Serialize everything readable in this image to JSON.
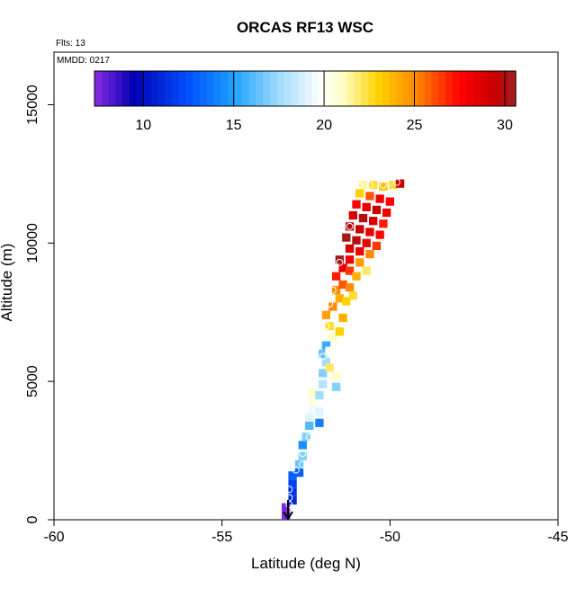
{
  "chart_data": {
    "type": "heatmap",
    "title": "ORCAS RF13 WSC",
    "annotations": [
      "Flts: 13",
      "MMDD: 0217"
    ],
    "xlabel": "Latitude (deg N)",
    "ylabel": "Altitude (m)",
    "xlim": [
      -60,
      -45
    ],
    "ylim": [
      0,
      16900
    ],
    "xticks": [
      -60,
      -55,
      -50,
      -45
    ],
    "xtick_labels": [
      "-60",
      "-55",
      "-50",
      "-45"
    ],
    "yticks": [
      0,
      5000,
      10000,
      15000
    ],
    "ytick_labels": [
      "0",
      "5000",
      "10000",
      "15000"
    ],
    "colorbar": {
      "range": [
        7.3,
        30.6
      ],
      "ticks": [
        10,
        15,
        20,
        25,
        30
      ],
      "tick_labels": [
        "10",
        "15",
        "20",
        "25",
        "30"
      ],
      "stops": [
        {
          "v": 7.3,
          "c": "#8a2be2"
        },
        {
          "v": 9.5,
          "c": "#0000b4"
        },
        {
          "v": 12.5,
          "c": "#0050ff"
        },
        {
          "v": 15.0,
          "c": "#1ea0ff"
        },
        {
          "v": 17.5,
          "c": "#a0dcff"
        },
        {
          "v": 19.8,
          "c": "#ffffff"
        },
        {
          "v": 21.0,
          "c": "#ffffc8"
        },
        {
          "v": 23.0,
          "c": "#ffd200"
        },
        {
          "v": 25.0,
          "c": "#ff8c00"
        },
        {
          "v": 27.5,
          "c": "#ff0000"
        },
        {
          "v": 29.5,
          "c": "#c80000"
        },
        {
          "v": 30.6,
          "c": "#a01e1e"
        }
      ]
    },
    "cell_size": {
      "dlat": 0.25,
      "dalt": 300
    },
    "cells": [
      [
        -53.1,
        150,
        7.5
      ],
      [
        -53.1,
        450,
        7.5
      ],
      [
        -52.9,
        700,
        11
      ],
      [
        -52.9,
        1000,
        11.5
      ],
      [
        -52.9,
        1300,
        12
      ],
      [
        -52.9,
        1600,
        13
      ],
      [
        -52.7,
        1700,
        13
      ],
      [
        -52.7,
        2000,
        16.5
      ],
      [
        -52.6,
        2300,
        17
      ],
      [
        -52.6,
        2700,
        14.5
      ],
      [
        -52.5,
        3000,
        17
      ],
      [
        -52.4,
        3400,
        16
      ],
      [
        -52.4,
        3700,
        19
      ],
      [
        -52.3,
        4000,
        19.5
      ],
      [
        -52.3,
        4300,
        20.5
      ],
      [
        -52.3,
        4600,
        21
      ],
      [
        -52.1,
        3500,
        14
      ],
      [
        -52.1,
        3900,
        19
      ],
      [
        -52.1,
        4500,
        17.5
      ],
      [
        -52.0,
        4900,
        18
      ],
      [
        -52.0,
        5300,
        17
      ],
      [
        -51.9,
        5700,
        17.5
      ],
      [
        -52.0,
        6000,
        16.5
      ],
      [
        -51.9,
        6300,
        15.5
      ],
      [
        -51.8,
        5500,
        22
      ],
      [
        -51.8,
        6100,
        20
      ],
      [
        -51.6,
        4800,
        17
      ],
      [
        -51.6,
        5200,
        21
      ],
      [
        -51.7,
        6600,
        21
      ],
      [
        -51.8,
        7000,
        22.5
      ],
      [
        -51.5,
        6800,
        23
      ],
      [
        -51.4,
        7300,
        24
      ],
      [
        -51.9,
        7400,
        24.5
      ],
      [
        -51.7,
        7700,
        25
      ],
      [
        -51.5,
        8000,
        24
      ],
      [
        -51.3,
        7900,
        23
      ],
      [
        -51.6,
        8300,
        25
      ],
      [
        -51.4,
        8500,
        26
      ],
      [
        -51.2,
        8400,
        25
      ],
      [
        -51.1,
        8100,
        22.5
      ],
      [
        -51.6,
        8800,
        27
      ],
      [
        -51.4,
        9100,
        28.5
      ],
      [
        -51.2,
        9000,
        26.5
      ],
      [
        -51.0,
        8800,
        24
      ],
      [
        -51.5,
        9400,
        30.5
      ],
      [
        -51.2,
        9400,
        28
      ],
      [
        -50.9,
        9300,
        24.5
      ],
      [
        -50.7,
        9000,
        22
      ],
      [
        -51.2,
        9800,
        29
      ],
      [
        -50.9,
        9700,
        28
      ],
      [
        -50.6,
        9600,
        25
      ],
      [
        -51.3,
        10200,
        30.5
      ],
      [
        -51.0,
        10100,
        30
      ],
      [
        -50.7,
        10000,
        28
      ],
      [
        -50.4,
        9900,
        26.5
      ],
      [
        -51.2,
        10600,
        30
      ],
      [
        -50.9,
        10500,
        29.5
      ],
      [
        -50.6,
        10400,
        28.5
      ],
      [
        -50.3,
        10300,
        27.5
      ],
      [
        -51.1,
        11000,
        29
      ],
      [
        -50.8,
        10900,
        30
      ],
      [
        -50.5,
        10800,
        29
      ],
      [
        -50.2,
        10700,
        27
      ],
      [
        -51.0,
        11400,
        27.5
      ],
      [
        -50.7,
        11300,
        28.5
      ],
      [
        -50.4,
        11200,
        29.5
      ],
      [
        -50.1,
        11100,
        28
      ],
      [
        -50.9,
        11800,
        23
      ],
      [
        -50.6,
        11700,
        26
      ],
      [
        -50.3,
        11600,
        28
      ],
      [
        -50.0,
        11500,
        27.5
      ],
      [
        -50.8,
        12100,
        21.5
      ],
      [
        -50.5,
        12100,
        22.5
      ],
      [
        -50.2,
        12050,
        23.5
      ],
      [
        -49.9,
        12100,
        22.5
      ],
      [
        -49.7,
        12150,
        29.5
      ]
    ],
    "markers": [
      [
        -53.0,
        550
      ],
      [
        -53.0,
        800
      ],
      [
        -53.0,
        1100
      ],
      [
        -52.8,
        1800
      ],
      [
        -52.6,
        2000
      ],
      [
        -52.6,
        2400
      ],
      [
        -52.4,
        3000
      ],
      [
        -52.0,
        5900
      ],
      [
        -51.9,
        7000
      ],
      [
        -51.8,
        7800
      ],
      [
        -51.7,
        8300
      ],
      [
        -51.5,
        9300
      ],
      [
        -51.2,
        10600
      ],
      [
        -50.9,
        12100
      ],
      [
        -50.6,
        12100
      ],
      [
        -50.2,
        12100
      ],
      [
        -49.8,
        12200
      ]
    ]
  }
}
